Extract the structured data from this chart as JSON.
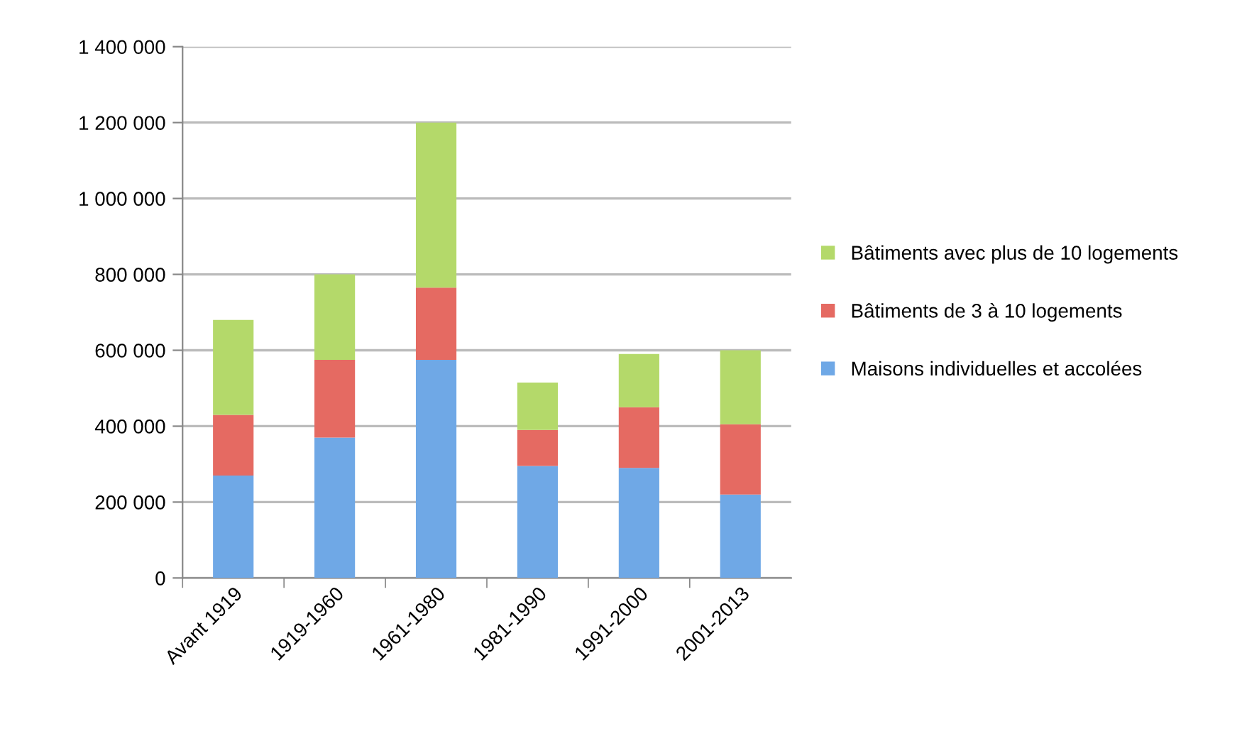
{
  "chart_data": {
    "type": "bar",
    "stacked": true,
    "categories": [
      "Avant 1919",
      "1919-1960",
      "1961-1980",
      "1981-1990",
      "1991-2000",
      "2001-2013"
    ],
    "series": [
      {
        "name": "Maisons individuelles et accolées",
        "color": "#6fa8e6",
        "values": [
          270000,
          370000,
          575000,
          295000,
          290000,
          220000
        ]
      },
      {
        "name": "Bâtiments de 3 à 10 logements",
        "color": "#e56a62",
        "values": [
          160000,
          205000,
          190000,
          95000,
          160000,
          185000
        ]
      },
      {
        "name": "Bâtiments avec plus de 10 logements",
        "color": "#b4d96a",
        "values": [
          250000,
          225000,
          435000,
          125000,
          140000,
          195000
        ]
      }
    ],
    "ylim": [
      0,
      1400000
    ],
    "yticks": [
      0,
      {
        "value": 200000,
        "label": "200 000"
      },
      {
        "value": 400000,
        "label": "400 000"
      },
      {
        "value": 600000,
        "label": "600 000"
      },
      {
        "value": 800000,
        "label": "800 000"
      },
      {
        "value": 1000000,
        "label": "1 000 000"
      },
      {
        "value": 1200000,
        "label": "1 200 000"
      },
      {
        "value": 1400000,
        "label": "1 400 000"
      }
    ],
    "grid": "y",
    "legend": "right"
  }
}
